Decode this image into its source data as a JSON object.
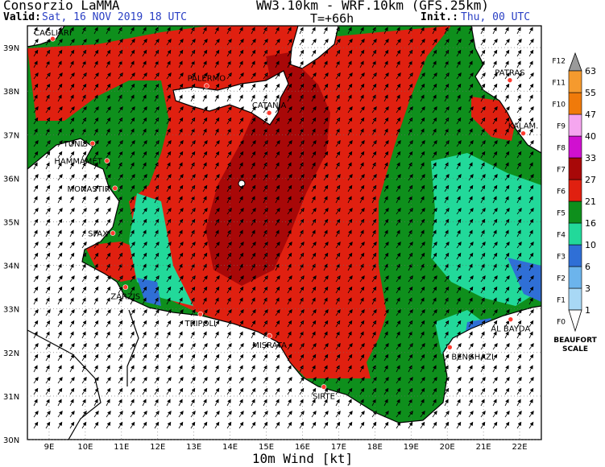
{
  "header": {
    "organization": "Consorzio LaMMA",
    "valid_label": "Valid:",
    "valid_value": "Sat, 16 NOV 2019  18 UTC",
    "models": "WW3.10km - WRF.10km (GFS.25km)",
    "timestep": "T=+66h",
    "init_label": "Init.:",
    "init_value": "Thu, 00 UTC"
  },
  "map": {
    "lat_labels": [
      "39N",
      "38N",
      "37N",
      "36N",
      "35N",
      "34N",
      "33N",
      "32N",
      "31N",
      "30N"
    ],
    "lat_values": [
      39,
      38,
      37,
      36,
      35,
      34,
      33,
      32,
      31,
      30
    ],
    "lon_labels": [
      "9E",
      "10E",
      "11E",
      "12E",
      "13E",
      "14E",
      "15E",
      "16E",
      "17E",
      "18E",
      "19E",
      "20E",
      "21E",
      "22E"
    ],
    "lon_values": [
      9,
      10,
      11,
      12,
      13,
      14,
      15,
      16,
      17,
      18,
      19,
      20,
      21,
      22
    ],
    "cities": [
      {
        "name": "CAGLIARI",
        "lon": 9.1,
        "lat": 39.2
      },
      {
        "name": "PALERMO",
        "lon": 13.35,
        "lat": 38.12
      },
      {
        "name": "CATANIA",
        "lon": 15.08,
        "lat": 37.5
      },
      {
        "name": "PATRAS",
        "lon": 21.73,
        "lat": 38.25
      },
      {
        "name": "KALAM.",
        "lon": 22.1,
        "lat": 37.03
      },
      {
        "name": "TUNIS",
        "lon": 10.2,
        "lat": 36.8
      },
      {
        "name": "HAMMAMET",
        "lon": 10.6,
        "lat": 36.4
      },
      {
        "name": "MONASTIR",
        "lon": 10.82,
        "lat": 35.77
      },
      {
        "name": "SFAX",
        "lon": 10.76,
        "lat": 34.74
      },
      {
        "name": "ZARZIS",
        "lon": 11.11,
        "lat": 33.5
      },
      {
        "name": "TRIPOLI",
        "lon": 13.18,
        "lat": 32.88
      },
      {
        "name": "MISRATA",
        "lon": 15.09,
        "lat": 32.38
      },
      {
        "name": "SIRTE",
        "lon": 16.59,
        "lat": 31.21
      },
      {
        "name": "BENGHAZI",
        "lon": 20.07,
        "lat": 32.12
      },
      {
        "name": "AL BAYDA",
        "lon": 21.75,
        "lat": 32.76
      }
    ]
  },
  "legend": {
    "thresholds": [
      "1",
      "3",
      "6",
      "10",
      "16",
      "21",
      "27",
      "33",
      "40",
      "47",
      "55",
      "63"
    ],
    "beaufort": [
      "F0",
      "F1",
      "F2",
      "F3",
      "F4",
      "F5",
      "F6",
      "F7",
      "F8",
      "F9",
      "F10",
      "F11",
      "F12"
    ],
    "colors": [
      "#a8d8f5",
      "#6cb4ec",
      "#2f6fd6",
      "#22d99a",
      "#0e8f1c",
      "#e02010",
      "#a80808",
      "#d010d0",
      "#f5a6ef",
      "#f07a0a",
      "#f59a2e",
      "#9a9a9a"
    ],
    "scale_label_1": "BEAUFORT",
    "scale_label_2": "SCALE"
  },
  "footer": {
    "title": "10m Wind [kt]"
  }
}
